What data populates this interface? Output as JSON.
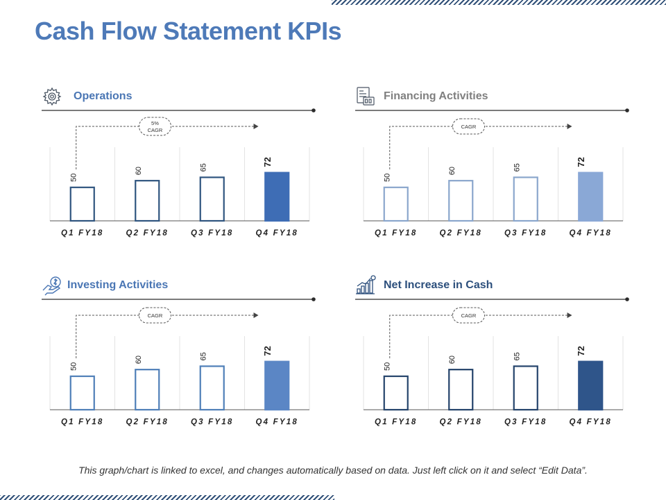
{
  "title": "Cash Flow Statement KPIs",
  "footnote": "This graph/chart is linked to excel, and changes automatically based on data. Just left click on it and select “Edit Data”.",
  "chart_data": [
    {
      "type": "bar",
      "title": "Operations",
      "icon": "gear-icon",
      "cagr_label": "5% CAGR",
      "categories": [
        "Q1 FY18",
        "Q2 FY18",
        "Q3 FY18",
        "Q4 FY18"
      ],
      "values": [
        50,
        60,
        65,
        72
      ],
      "ylim": [
        0,
        110
      ],
      "colors": {
        "title": "#4a76b4",
        "line": "#2f557f",
        "bar_stroke": "#2f557f",
        "highlight": "#3e6db5",
        "rule": "#2b2b2b"
      }
    },
    {
      "type": "bar",
      "title": "Financing Activities",
      "icon": "document-icon",
      "cagr_label": "CAGR",
      "categories": [
        "Q1 FY18",
        "Q2 FY18",
        "Q3 FY18",
        "Q4 FY18"
      ],
      "values": [
        50,
        60,
        65,
        72
      ],
      "ylim": [
        0,
        110
      ],
      "colors": {
        "title": "#7f7f7f",
        "line": "#8aa6cc",
        "bar_stroke": "#8aa6cc",
        "highlight": "#8aa8d6",
        "rule": "#2b2b2b"
      }
    },
    {
      "type": "bar",
      "title": "Investing Activities",
      "icon": "money-hand-icon",
      "cagr_label": "CAGR",
      "categories": [
        "Q1 FY18",
        "Q2 FY18",
        "Q3 FY18",
        "Q4 FY18"
      ],
      "values": [
        50,
        60,
        65,
        72
      ],
      "ylim": [
        0,
        110
      ],
      "colors": {
        "title": "#4a76b4",
        "line": "#4a76b4",
        "bar_stroke": "#4f7fb8",
        "highlight": "#5b86c5",
        "rule": "#2b2b2b"
      }
    },
    {
      "type": "bar",
      "title": "Net Increase in Cash",
      "icon": "growth-chart-icon",
      "cagr_label": "CAGR",
      "categories": [
        "Q1 FY18",
        "Q2 FY18",
        "Q3 FY18",
        "Q4 FY18"
      ],
      "values": [
        50,
        60,
        65,
        72
      ],
      "ylim": [
        0,
        110
      ],
      "colors": {
        "title": "#2c4f7c",
        "line": "#2c4f7c",
        "bar_stroke": "#24436b",
        "highlight": "#2f558a",
        "rule": "#2b2b2b"
      }
    }
  ]
}
